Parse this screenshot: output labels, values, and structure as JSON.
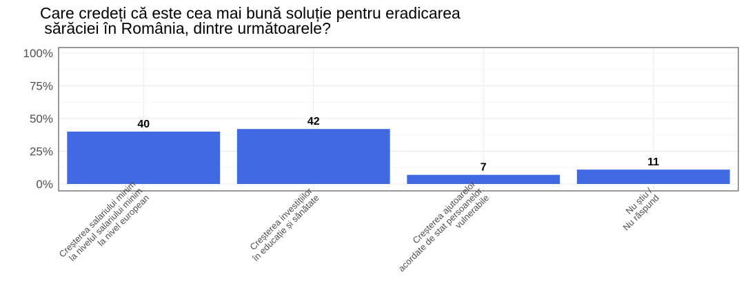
{
  "chart_data": {
    "type": "bar",
    "title_lines": [
      "Care credeți că este cea mai bună soluție pentru eradicarea",
      " sărăciei în România, dintre următoarele?"
    ],
    "categories": [
      [
        "Creșterea salariului minim",
        "la nivelul salariului minim",
        "la nivel european"
      ],
      [
        "Creșterea investițiilor",
        "în educație și sănătate"
      ],
      [
        "Creșterea ajutoarelor",
        "acordate de stat persoanelor",
        "vulnerabile"
      ],
      [
        "Nu știu /",
        "Nu răspund"
      ]
    ],
    "values": [
      40,
      42,
      7,
      11
    ],
    "data_labels": [
      "40",
      "42",
      "7",
      "11"
    ],
    "ylim": [
      0,
      100
    ],
    "yticks": [
      0,
      25,
      50,
      75,
      100
    ],
    "ytick_labels": [
      "0%",
      "25%",
      "50%",
      "75%",
      "100%"
    ],
    "xlabel": "",
    "ylabel": "",
    "grid": true,
    "colors": {
      "bar": "#4169E1",
      "grid": "#ebebeb",
      "panel_border": "#333333",
      "text": "#000000",
      "tick_text": "#4d4d4d"
    }
  }
}
